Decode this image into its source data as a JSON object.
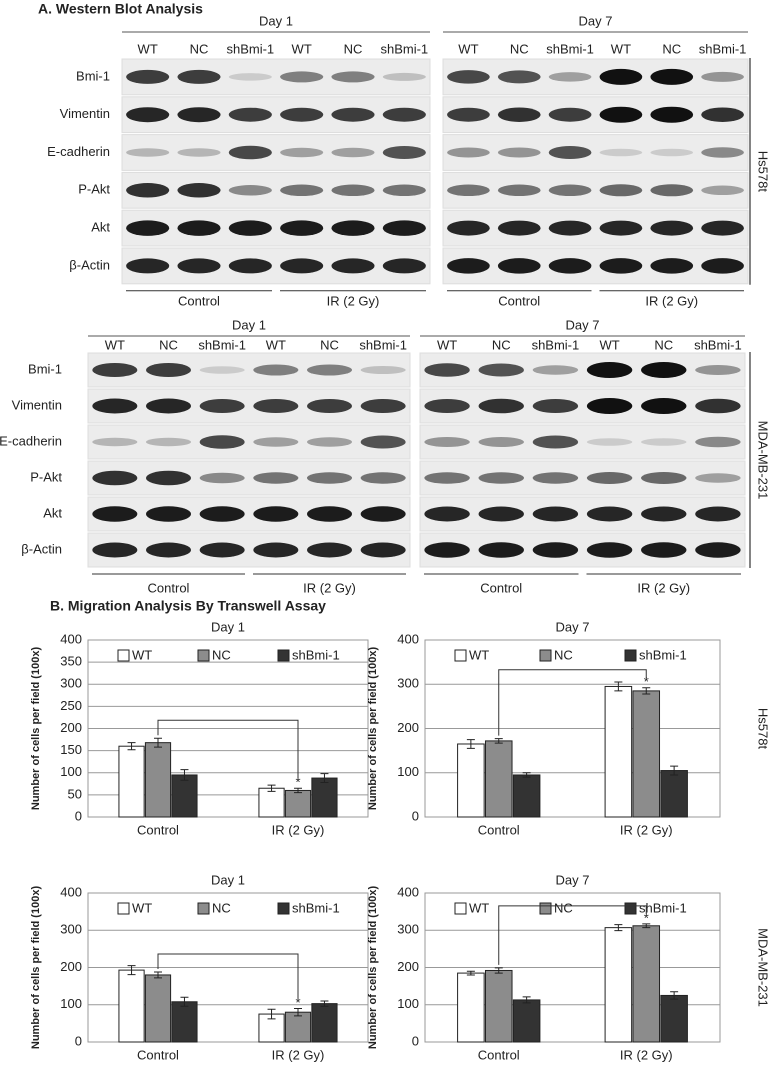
{
  "western_blot": {
    "title": "A. Western Blot Analysis",
    "panels": [
      {
        "cell_line": "Hs578t",
        "proteins": [
          "Bmi-1",
          "Vimentin",
          "E-cadherin",
          "P-Akt",
          "Akt",
          "β-Actin"
        ],
        "days": [
          {
            "day": "Day 1",
            "lanes": [
              "WT",
              "NC",
              "shBmi-1",
              "WT",
              "NC",
              "shBmi-1"
            ],
            "groups": [
              "Control",
              "IR (2 Gy)"
            ]
          },
          {
            "day": "Day 7",
            "lanes": [
              "WT",
              "NC",
              "shBmi-1",
              "WT",
              "NC",
              "shBmi-1"
            ],
            "groups": [
              "Control",
              "IR (2 Gy)"
            ]
          }
        ]
      },
      {
        "cell_line": "MDA-MB-231",
        "proteins": [
          "Bmi-1",
          "Vimentin",
          "E-cadherin",
          "P-Akt",
          "Akt",
          "β-Actin"
        ],
        "days": [
          {
            "day": "Day 1",
            "lanes": [
              "WT",
              "NC",
              "shBmi-1",
              "WT",
              "NC",
              "shBmi-1"
            ],
            "groups": [
              "Control",
              "IR (2 Gy)"
            ]
          },
          {
            "day": "Day 7",
            "lanes": [
              "WT",
              "NC",
              "shBmi-1",
              "WT",
              "NC",
              "shBmi-1"
            ],
            "groups": [
              "Control",
              "IR (2 Gy)"
            ]
          }
        ]
      }
    ]
  },
  "migration": {
    "title": "B. Migration Analysis By Transwell Assay"
  },
  "chart_data": [
    {
      "type": "bar",
      "title": "Day 1",
      "y_label": "Number of cells per field (100x)",
      "categories": [
        "Control",
        "IR (2 Gy)"
      ],
      "series": [
        {
          "name": "WT",
          "color": "#ffffff",
          "values": [
            160,
            65
          ],
          "errors": [
            8,
            7
          ]
        },
        {
          "name": "NC",
          "color": "#8c8c8c",
          "values": [
            168,
            60
          ],
          "errors": [
            10,
            5
          ]
        },
        {
          "name": "shBmi-1",
          "color": "#333333",
          "values": [
            95,
            88
          ],
          "errors": [
            12,
            10
          ]
        }
      ],
      "ylim": [
        0,
        400
      ],
      "yticks": [
        0,
        50,
        100,
        150,
        200,
        250,
        300,
        350,
        400
      ],
      "grid": true,
      "annotation": "*"
    },
    {
      "type": "bar",
      "title": "Day 7",
      "y_label": "Number of cells per field (100x)",
      "categories": [
        "Control",
        "IR (2 Gy)"
      ],
      "series": [
        {
          "name": "WT",
          "color": "#ffffff",
          "values": [
            165,
            295
          ],
          "errors": [
            10,
            10
          ]
        },
        {
          "name": "NC",
          "color": "#8c8c8c",
          "values": [
            172,
            285
          ],
          "errors": [
            5,
            7
          ]
        },
        {
          "name": "shBmi-1",
          "color": "#333333",
          "values": [
            95,
            105
          ],
          "errors": [
            5,
            10
          ]
        }
      ],
      "ylim": [
        0,
        400
      ],
      "yticks": [
        0,
        100,
        200,
        300,
        400
      ],
      "grid": true,
      "annotation": "*",
      "side_label": "Hs578t"
    },
    {
      "type": "bar",
      "title": "Day 1",
      "y_label": "Number of cells per field (100x)",
      "categories": [
        "Control",
        "IR (2 Gy)"
      ],
      "series": [
        {
          "name": "WT",
          "color": "#ffffff",
          "values": [
            193,
            75
          ],
          "errors": [
            12,
            13
          ]
        },
        {
          "name": "NC",
          "color": "#8c8c8c",
          "values": [
            180,
            80
          ],
          "errors": [
            8,
            10
          ]
        },
        {
          "name": "shBmi-1",
          "color": "#333333",
          "values": [
            108,
            103
          ],
          "errors": [
            12,
            7
          ]
        }
      ],
      "ylim": [
        0,
        400
      ],
      "yticks": [
        0,
        100,
        200,
        300,
        400
      ],
      "grid": true,
      "annotation": "*"
    },
    {
      "type": "bar",
      "title": "Day 7",
      "y_label": "Number of cells per field (100x)",
      "categories": [
        "Control",
        "IR (2 Gy)"
      ],
      "series": [
        {
          "name": "WT",
          "color": "#ffffff",
          "values": [
            185,
            307
          ],
          "errors": [
            5,
            8
          ]
        },
        {
          "name": "NC",
          "color": "#8c8c8c",
          "values": [
            192,
            312
          ],
          "errors": [
            7,
            5
          ]
        },
        {
          "name": "shBmi-1",
          "color": "#333333",
          "values": [
            113,
            125
          ],
          "errors": [
            8,
            10
          ]
        }
      ],
      "ylim": [
        0,
        400
      ],
      "yticks": [
        0,
        100,
        200,
        300,
        400
      ],
      "grid": true,
      "annotation": "*",
      "side_label": "MDA-MB-231"
    }
  ]
}
